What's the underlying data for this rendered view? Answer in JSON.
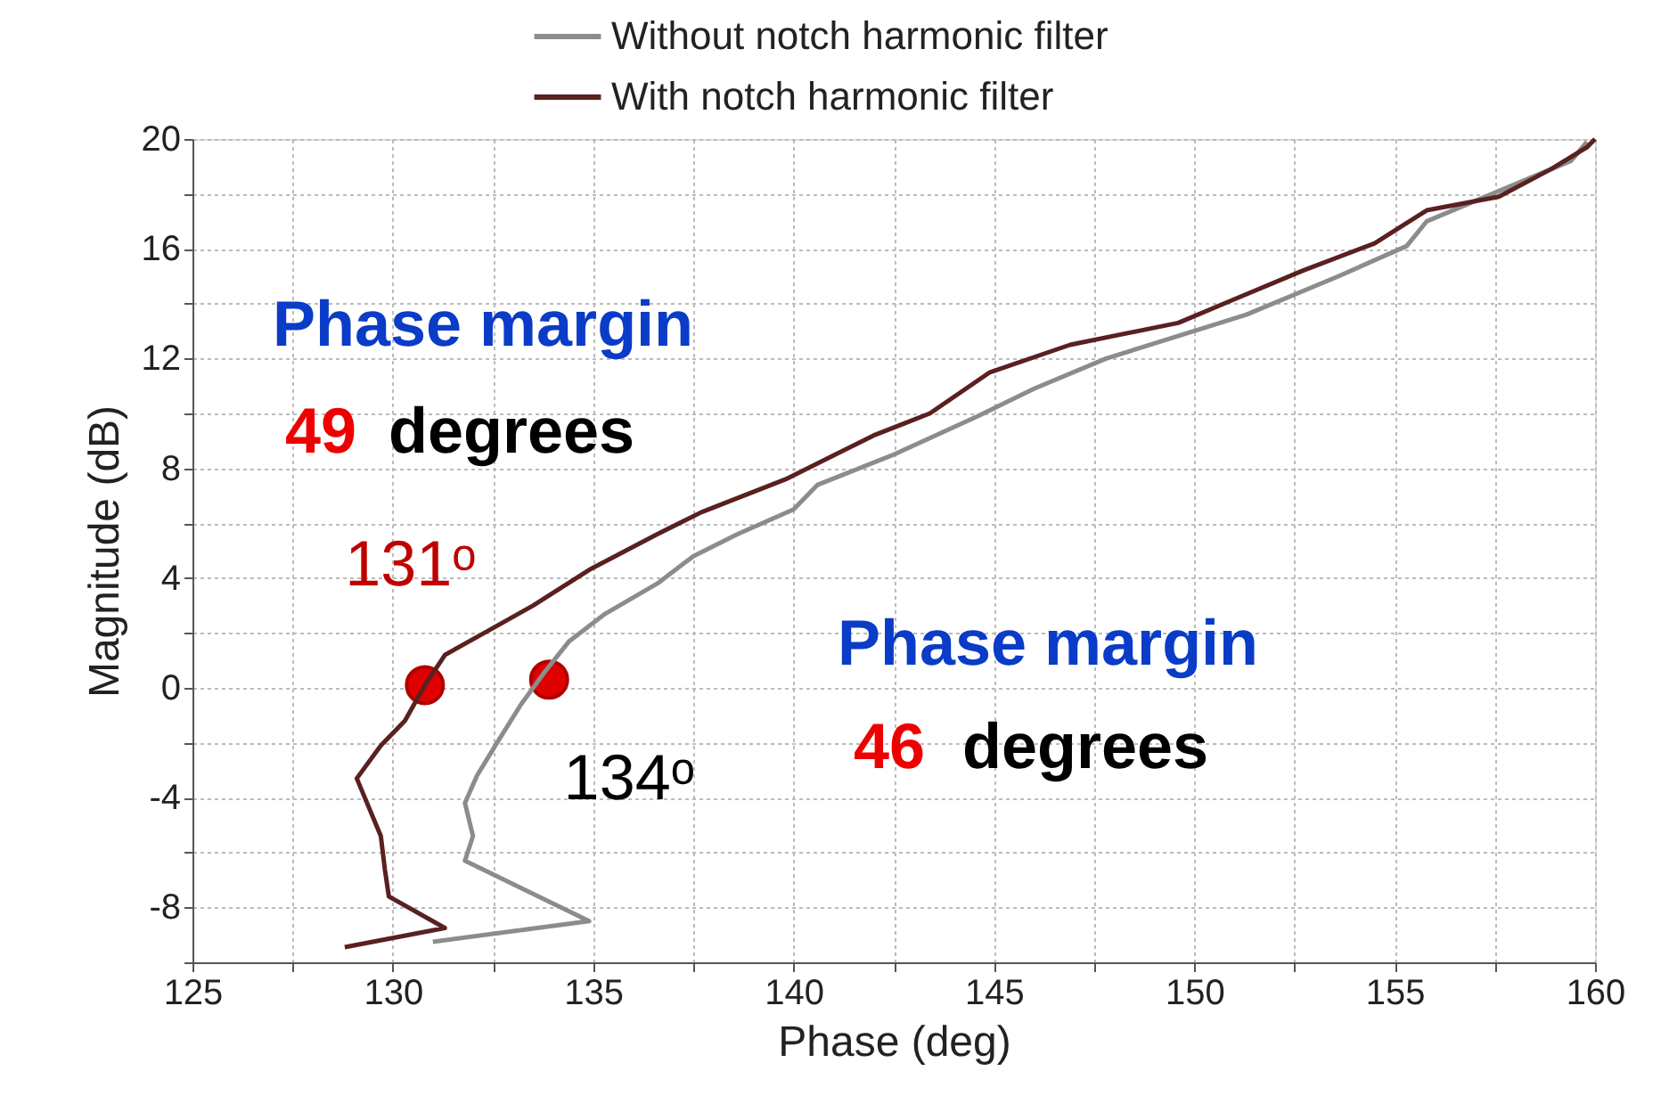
{
  "chart_data": {
    "type": "line",
    "xlabel": "Phase (deg)",
    "ylabel": "Magnitude (dB)",
    "xlim": [
      125,
      160
    ],
    "ylim": [
      -10,
      20
    ],
    "xticks": [
      125,
      {
        "value": 127.5,
        "label": null
      },
      130,
      {
        "value": 132.5,
        "label": null
      },
      135,
      {
        "value": 137.5,
        "label": null
      },
      140,
      {
        "value": 142.5,
        "label": null
      },
      145,
      {
        "value": 147.5,
        "label": null
      },
      150,
      {
        "value": 152.5,
        "label": null
      },
      155,
      {
        "value": 157.5,
        "label": null
      },
      160
    ],
    "yticks": [
      {
        "value": -10,
        "label": null
      },
      -8,
      {
        "value": -6,
        "label": null
      },
      -4,
      {
        "value": -2,
        "label": null
      },
      0,
      {
        "value": 2,
        "label": null
      },
      4,
      {
        "value": 6,
        "label": null
      },
      8,
      {
        "value": 10,
        "label": null
      },
      12,
      {
        "value": 14,
        "label": null
      },
      16,
      {
        "value": 18,
        "label": null
      },
      20
    ],
    "grid": true,
    "legend": "top",
    "marker": "none",
    "line_style": "solid",
    "series": [
      {
        "type": "scatter",
        "marker": "circle",
        "color": "#e00000",
        "x": [
          130.8,
          133.9
        ],
        "values": [
          0.1,
          0.3
        ]
      },
      {
        "name": "Without notch harmonic filter",
        "color": "#8c8c8c",
        "x": [
          131.0,
          134.9,
          131.8,
          132.0,
          131.8,
          132.1,
          132.6,
          133.2,
          133.8,
          134.4,
          135.3,
          136.6,
          137.5,
          138.6,
          140.0,
          140.6,
          142.5,
          144.6,
          146.0,
          147.8,
          151.3,
          153.6,
          155.3,
          155.8,
          158.9,
          159.4,
          159.8
        ],
        "values": [
          -9.25,
          -8.5,
          -6.3,
          -5.4,
          -4.2,
          -3.2,
          -2.0,
          -0.6,
          0.6,
          1.7,
          2.7,
          3.8,
          4.8,
          5.6,
          6.5,
          7.4,
          8.5,
          9.9,
          10.9,
          12.0,
          13.6,
          15.0,
          16.1,
          17.0,
          18.9,
          19.2,
          19.9
        ]
      },
      {
        "name": "With notch harmonic filter",
        "color": "#5a2020",
        "x": [
          128.8,
          131.3,
          129.9,
          129.8,
          129.7,
          129.1,
          129.7,
          130.3,
          130.8,
          131.3,
          132.4,
          133.5,
          134.9,
          136.6,
          137.7,
          139.8,
          142.0,
          143.4,
          144.9,
          146.9,
          149.6,
          150.9,
          152.7,
          154.5,
          155.8,
          157.6,
          158.9,
          159.8,
          160.0
        ],
        "values": [
          -9.45,
          -8.75,
          -7.6,
          -6.6,
          -5.4,
          -3.3,
          -2.1,
          -1.2,
          0.1,
          1.2,
          2.1,
          3.0,
          4.3,
          5.6,
          6.4,
          7.6,
          9.2,
          10.0,
          11.5,
          12.5,
          13.3,
          14.1,
          15.2,
          16.2,
          17.4,
          17.9,
          18.9,
          19.7,
          20.0
        ]
      }
    ],
    "annotations": [
      "Phase margin",
      "49",
      "degrees",
      "Phase margin",
      "46",
      "degrees",
      {
        "text": "131ᵒ",
        "x": 130.8,
        "y": 0.1
      },
      {
        "text": "134ᵒ",
        "x": 133.9,
        "y": 0.3
      }
    ]
  }
}
